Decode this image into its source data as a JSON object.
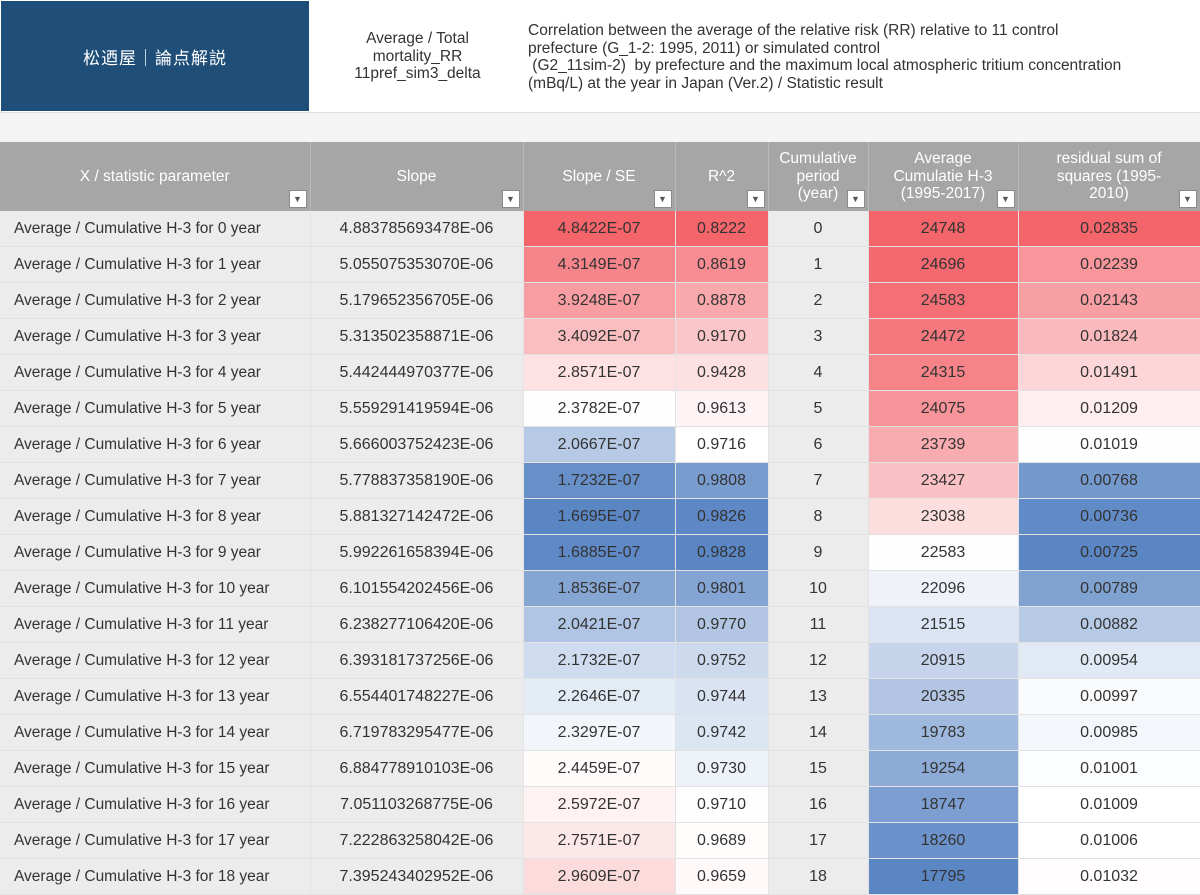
{
  "brand": "松迺屋｜論点解説",
  "subtitle_lines": [
    "Average / Total",
    "mortality_RR",
    "11pref_sim3_delta"
  ],
  "description_lines": [
    "Correlation between the average of the relative risk (RR)  relative to 11 control",
    "prefecture (G_1-2: 1995, 2011) or simulated control",
    " (G2_11sim-2)  by prefecture and the maximum local atmospheric tritium concentration",
    "(mBq/L) at the year in Japan (Ver.2) / Statistic result"
  ],
  "icons": {
    "filter": "filter-dropdown-icon"
  },
  "colors": {
    "brand_bg": "#1f4e79",
    "header_bg": "#a6a6a6",
    "high_red": "#f4646b",
    "low_blue": "#5b86c4",
    "neutral": "#ffffff"
  },
  "table": {
    "headers": [
      [
        "X / statistic parameter"
      ],
      [
        "Slope"
      ],
      [
        "Slope /  SE"
      ],
      [
        "R^2"
      ],
      [
        "Cumulative",
        "period",
        "(year)"
      ],
      [
        "Average",
        "Cumulatie H-3",
        "(1995-2017)"
      ],
      [
        "residual sum of",
        "squares  (1995-",
        "2010)"
      ]
    ],
    "rows": [
      [
        "Average / Cumulative H-3 for 0 year",
        "4.883785693478E-06",
        "4.8422E-07",
        "0.8222",
        "0",
        "24748",
        "0.02835"
      ],
      [
        "Average / Cumulative H-3 for 1 year",
        "5.055075353070E-06",
        "4.3149E-07",
        "0.8619",
        "1",
        "24696",
        "0.02239"
      ],
      [
        "Average / Cumulative H-3 for 2 year",
        "5.179652356705E-06",
        "3.9248E-07",
        "0.8878",
        "2",
        "24583",
        "0.02143"
      ],
      [
        "Average / Cumulative H-3 for 3 year",
        "5.313502358871E-06",
        "3.4092E-07",
        "0.9170",
        "3",
        "24472",
        "0.01824"
      ],
      [
        "Average / Cumulative H-3 for 4 year",
        "5.442444970377E-06",
        "2.8571E-07",
        "0.9428",
        "4",
        "24315",
        "0.01491"
      ],
      [
        "Average / Cumulative H-3 for 5 year",
        "5.559291419594E-06",
        "2.3782E-07",
        "0.9613",
        "5",
        "24075",
        "0.01209"
      ],
      [
        "Average / Cumulative H-3 for 6 year",
        "5.666003752423E-06",
        "2.0667E-07",
        "0.9716",
        "6",
        "23739",
        "0.01019"
      ],
      [
        "Average / Cumulative H-3 for 7 year",
        "5.778837358190E-06",
        "1.7232E-07",
        "0.9808",
        "7",
        "23427",
        "0.00768"
      ],
      [
        "Average / Cumulative H-3 for 8 year",
        "5.881327142472E-06",
        "1.6695E-07",
        "0.9826",
        "8",
        "23038",
        "0.00736"
      ],
      [
        "Average / Cumulative H-3 for 9 year",
        "5.992261658394E-06",
        "1.6885E-07",
        "0.9828",
        "9",
        "22583",
        "0.00725"
      ],
      [
        "Average / Cumulative H-3 for 10 year",
        "6.101554202456E-06",
        "1.8536E-07",
        "0.9801",
        "10",
        "22096",
        "0.00789"
      ],
      [
        "Average / Cumulative H-3 for 11 year",
        "6.238277106420E-06",
        "2.0421E-07",
        "0.9770",
        "11",
        "21515",
        "0.00882"
      ],
      [
        "Average / Cumulative H-3 for 12 year",
        "6.393181737256E-06",
        "2.1732E-07",
        "0.9752",
        "12",
        "20915",
        "0.00954"
      ],
      [
        "Average / Cumulative H-3 for 13 year",
        "6.554401748227E-06",
        "2.2646E-07",
        "0.9744",
        "13",
        "20335",
        "0.00997"
      ],
      [
        "Average / Cumulative H-3 for 14 year",
        "6.719783295477E-06",
        "2.3297E-07",
        "0.9742",
        "14",
        "19783",
        "0.00985"
      ],
      [
        "Average / Cumulative H-3 for 15 year",
        "6.884778910103E-06",
        "2.4459E-07",
        "0.9730",
        "15",
        "19254",
        "0.01001"
      ],
      [
        "Average / Cumulative H-3 for 16 year",
        "7.051103268775E-06",
        "2.5972E-07",
        "0.9710",
        "16",
        "18747",
        "0.01009"
      ],
      [
        "Average / Cumulative H-3 for 17 year",
        "7.222863258042E-06",
        "2.7571E-07",
        "0.9689",
        "17",
        "18260",
        "0.01006"
      ],
      [
        "Average / Cumulative H-3 for 18 year",
        "7.395243402952E-06",
        "2.9609E-07",
        "0.9659",
        "18",
        "17795",
        "0.01032"
      ]
    ],
    "heat_columns": [
      2,
      3,
      5,
      6
    ],
    "heat_direction": {
      "2": "high-red",
      "3": "low-red",
      "5": "high-red",
      "6": "high-red"
    }
  }
}
